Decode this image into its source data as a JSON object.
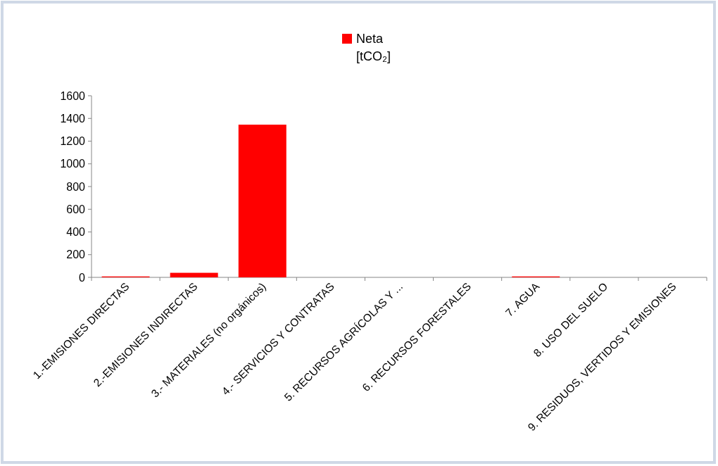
{
  "chart_data": {
    "type": "bar",
    "categories": [
      "1.-EMISIONES DIRECTAS",
      "2.-EMISIONES INDIRECTAS",
      "3.- MATERIALES (no orgánicos)",
      "4.- SERVICIOS Y CONTRATAS",
      "5. RECURSOS AGRÍCOLAS Y ...",
      "6. RECURSOS FORESTALES",
      "7. AGUA",
      "8. USO DEL SUELO",
      "9. RESIDUOS, VERTIDOS Y EMISIONES"
    ],
    "series": [
      {
        "name": "Neta [tCO₂]",
        "color": "#ff0000",
        "values": [
          8,
          40,
          1345,
          0,
          0,
          0,
          8,
          0,
          0
        ]
      }
    ],
    "ylim": [
      0,
      1600
    ],
    "yticks": [
      0,
      200,
      400,
      600,
      800,
      1000,
      1200,
      1400,
      1600
    ],
    "grid": false,
    "legend": "top"
  }
}
